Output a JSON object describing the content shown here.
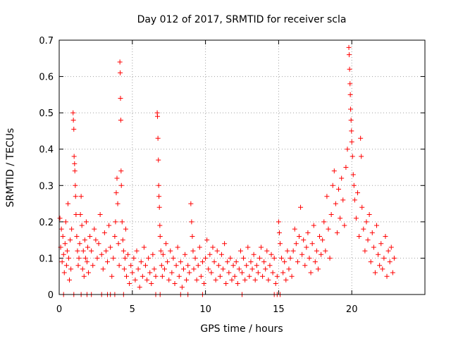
{
  "chart_data": {
    "type": "scatter",
    "title": "Day 012 of 2017, SRMTID for receiver scla",
    "xlabel": "GPS time / hours",
    "ylabel": "SRMTID / TECUs",
    "xlim": [
      0,
      25
    ],
    "ylim": [
      0,
      0.7
    ],
    "xticks": [
      0,
      5,
      10,
      15,
      20
    ],
    "yticks": [
      0,
      0.1,
      0.2,
      0.3,
      0.4,
      0.5,
      0.6,
      0.7
    ],
    "grid": true,
    "marker": "+",
    "series": [
      {
        "name": "SRMTID",
        "color": "#ff0000",
        "points": [
          [
            0.05,
            0.21
          ],
          [
            0.1,
            0.13
          ],
          [
            0.15,
            0.18
          ],
          [
            0.2,
            0.09
          ],
          [
            0.25,
            0.16
          ],
          [
            0.3,
            0.11
          ],
          [
            0.35,
            0.06
          ],
          [
            0.4,
            0.14
          ],
          [
            0.45,
            0.2
          ],
          [
            0.5,
            0.08
          ],
          [
            0.55,
            0.12
          ],
          [
            0.6,
            0.25
          ],
          [
            0.65,
            0.1
          ],
          [
            0.7,
            0.04
          ],
          [
            0.75,
            0.15
          ],
          [
            0.8,
            0.07
          ],
          [
            0.85,
            0.18
          ],
          [
            0.95,
            0.5
          ],
          [
            0.97,
            0.48
          ],
          [
            1.0,
            0.455
          ],
          [
            1.02,
            0.38
          ],
          [
            1.05,
            0.36
          ],
          [
            1.07,
            0.34
          ],
          [
            1.1,
            0.3
          ],
          [
            1.12,
            0.27
          ],
          [
            1.15,
            0.22
          ],
          [
            1.2,
            0.16
          ],
          [
            1.25,
            0.12
          ],
          [
            1.3,
            0.08
          ],
          [
            1.35,
            0.1
          ],
          [
            1.4,
            0.14
          ],
          [
            1.45,
            0.22
          ],
          [
            1.5,
            0.27
          ],
          [
            1.55,
            0.19
          ],
          [
            1.6,
            0.07
          ],
          [
            1.65,
            0.12
          ],
          [
            1.7,
            0.05
          ],
          [
            1.75,
            0.15
          ],
          [
            1.8,
            0.1
          ],
          [
            1.85,
            0.2
          ],
          [
            1.9,
            0.09
          ],
          [
            1.95,
            0.13
          ],
          [
            2.0,
            0.06
          ],
          [
            2.1,
            0.16
          ],
          [
            2.2,
            0.12
          ],
          [
            2.3,
            0.08
          ],
          [
            2.4,
            0.18
          ],
          [
            2.5,
            0.15
          ],
          [
            2.6,
            0.1
          ],
          [
            2.7,
            0.14
          ],
          [
            2.8,
            0.22
          ],
          [
            2.9,
            0.11
          ],
          [
            3.0,
            0.07
          ],
          [
            3.1,
            0.17
          ],
          [
            3.2,
            0.12
          ],
          [
            3.3,
            0.09
          ],
          [
            3.4,
            0.19
          ],
          [
            3.5,
            0.13
          ],
          [
            3.6,
            0.05
          ],
          [
            3.7,
            0.1
          ],
          [
            3.8,
            0.16
          ],
          [
            3.85,
            0.2
          ],
          [
            3.9,
            0.28
          ],
          [
            3.95,
            0.32
          ],
          [
            4.0,
            0.25
          ],
          [
            4.05,
            0.14
          ],
          [
            4.1,
            0.08
          ],
          [
            4.15,
            0.64
          ],
          [
            4.17,
            0.61
          ],
          [
            4.19,
            0.54
          ],
          [
            4.21,
            0.48
          ],
          [
            4.23,
            0.34
          ],
          [
            4.25,
            0.3
          ],
          [
            4.3,
            0.2
          ],
          [
            4.35,
            0.15
          ],
          [
            4.4,
            0.12
          ],
          [
            4.45,
            0.07
          ],
          [
            4.5,
            0.1
          ],
          [
            4.55,
            0.18
          ],
          [
            4.6,
            0.05
          ],
          [
            4.7,
            0.11
          ],
          [
            4.8,
            0.03
          ],
          [
            4.9,
            0.08
          ],
          [
            5.0,
            0.06
          ],
          [
            5.1,
            0.1
          ],
          [
            5.2,
            0.04
          ],
          [
            5.3,
            0.12
          ],
          [
            5.4,
            0.07
          ],
          [
            5.5,
            0.02
          ],
          [
            5.6,
            0.09
          ],
          [
            5.7,
            0.05
          ],
          [
            5.8,
            0.13
          ],
          [
            5.9,
            0.08
          ],
          [
            6.0,
            0.04
          ],
          [
            6.1,
            0.1
          ],
          [
            6.2,
            0.06
          ],
          [
            6.3,
            0.03
          ],
          [
            6.4,
            0.11
          ],
          [
            6.5,
            0.07
          ],
          [
            6.6,
            0.05
          ],
          [
            6.7,
            0.5
          ],
          [
            6.72,
            0.49
          ],
          [
            6.75,
            0.43
          ],
          [
            6.78,
            0.37
          ],
          [
            6.8,
            0.3
          ],
          [
            6.82,
            0.27
          ],
          [
            6.85,
            0.24
          ],
          [
            6.88,
            0.19
          ],
          [
            6.9,
            0.16
          ],
          [
            6.95,
            0.12
          ],
          [
            7.0,
            0.08
          ],
          [
            7.05,
            0.05
          ],
          [
            7.1,
            0.11
          ],
          [
            7.2,
            0.07
          ],
          [
            7.3,
            0.14
          ],
          [
            7.4,
            0.09
          ],
          [
            7.5,
            0.04
          ],
          [
            7.6,
            0.12
          ],
          [
            7.7,
            0.06
          ],
          [
            7.8,
            0.1
          ],
          [
            7.9,
            0.03
          ],
          [
            8.0,
            0.08
          ],
          [
            8.1,
            0.13
          ],
          [
            8.2,
            0.05
          ],
          [
            8.3,
            0.09
          ],
          [
            8.4,
            0.02
          ],
          [
            8.5,
            0.07
          ],
          [
            8.6,
            0.11
          ],
          [
            8.7,
            0.04
          ],
          [
            8.8,
            0.08
          ],
          [
            8.9,
            0.06
          ],
          [
            9.0,
            0.25
          ],
          [
            9.05,
            0.2
          ],
          [
            9.1,
            0.16
          ],
          [
            9.15,
            0.12
          ],
          [
            9.2,
            0.07
          ],
          [
            9.3,
            0.1
          ],
          [
            9.4,
            0.04
          ],
          [
            9.5,
            0.08
          ],
          [
            9.6,
            0.13
          ],
          [
            9.7,
            0.05
          ],
          [
            9.8,
            0.09
          ],
          [
            9.9,
            0.03
          ],
          [
            10.0,
            0.1
          ],
          [
            10.1,
            0.15
          ],
          [
            10.2,
            0.07
          ],
          [
            10.3,
            0.11
          ],
          [
            10.4,
            0.06
          ],
          [
            10.5,
            0.13
          ],
          [
            10.6,
            0.09
          ],
          [
            10.7,
            0.04
          ],
          [
            10.8,
            0.12
          ],
          [
            10.9,
            0.08
          ],
          [
            11.0,
            0.05
          ],
          [
            11.1,
            0.11
          ],
          [
            11.2,
            0.07
          ],
          [
            11.3,
            0.14
          ],
          [
            11.4,
            0.03
          ],
          [
            11.5,
            0.09
          ],
          [
            11.6,
            0.06
          ],
          [
            11.7,
            0.1
          ],
          [
            11.8,
            0.04
          ],
          [
            11.9,
            0.08
          ],
          [
            12.0,
            0.05
          ],
          [
            12.1,
            0.09
          ],
          [
            12.2,
            0.03
          ],
          [
            12.3,
            0.07
          ],
          [
            12.4,
            0.12
          ],
          [
            12.5,
            0.06
          ],
          [
            12.6,
            0.1
          ],
          [
            12.7,
            0.04
          ],
          [
            12.8,
            0.08
          ],
          [
            12.9,
            0.13
          ],
          [
            13.0,
            0.05
          ],
          [
            13.1,
            0.09
          ],
          [
            13.2,
            0.07
          ],
          [
            13.3,
            0.11
          ],
          [
            13.4,
            0.04
          ],
          [
            13.5,
            0.08
          ],
          [
            13.6,
            0.06
          ],
          [
            13.7,
            0.1
          ],
          [
            13.8,
            0.13
          ],
          [
            13.9,
            0.05
          ],
          [
            14.0,
            0.09
          ],
          [
            14.1,
            0.07
          ],
          [
            14.2,
            0.12
          ],
          [
            14.3,
            0.04
          ],
          [
            14.4,
            0.08
          ],
          [
            14.5,
            0.11
          ],
          [
            14.6,
            0.06
          ],
          [
            14.7,
            0.1
          ],
          [
            14.8,
            0.03
          ],
          [
            14.9,
            0.05
          ],
          [
            15.0,
            0.2
          ],
          [
            15.05,
            0.17
          ],
          [
            15.1,
            0.14
          ],
          [
            15.2,
            0.1
          ],
          [
            15.3,
            0.06
          ],
          [
            15.4,
            0.09
          ],
          [
            15.5,
            0.04
          ],
          [
            15.6,
            0.12
          ],
          [
            15.7,
            0.07
          ],
          [
            15.8,
            0.1
          ],
          [
            15.9,
            0.05
          ],
          [
            16.0,
            0.12
          ],
          [
            16.1,
            0.18
          ],
          [
            16.2,
            0.14
          ],
          [
            16.3,
            0.09
          ],
          [
            16.4,
            0.16
          ],
          [
            16.5,
            0.24
          ],
          [
            16.6,
            0.11
          ],
          [
            16.7,
            0.15
          ],
          [
            16.8,
            0.08
          ],
          [
            16.9,
            0.13
          ],
          [
            17.0,
            0.17
          ],
          [
            17.1,
            0.1
          ],
          [
            17.2,
            0.06
          ],
          [
            17.3,
            0.14
          ],
          [
            17.4,
            0.19
          ],
          [
            17.5,
            0.09
          ],
          [
            17.6,
            0.12
          ],
          [
            17.7,
            0.07
          ],
          [
            17.8,
            0.16
          ],
          [
            17.9,
            0.11
          ],
          [
            18.0,
            0.15
          ],
          [
            18.1,
            0.2
          ],
          [
            18.2,
            0.12
          ],
          [
            18.3,
            0.27
          ],
          [
            18.4,
            0.18
          ],
          [
            18.5,
            0.1
          ],
          [
            18.6,
            0.22
          ],
          [
            18.7,
            0.3
          ],
          [
            18.8,
            0.34
          ],
          [
            18.9,
            0.25
          ],
          [
            19.0,
            0.17
          ],
          [
            19.1,
            0.29
          ],
          [
            19.2,
            0.21
          ],
          [
            19.3,
            0.32
          ],
          [
            19.4,
            0.26
          ],
          [
            19.5,
            0.19
          ],
          [
            19.6,
            0.35
          ],
          [
            19.7,
            0.4
          ],
          [
            19.8,
            0.68
          ],
          [
            19.82,
            0.66
          ],
          [
            19.85,
            0.62
          ],
          [
            19.88,
            0.58
          ],
          [
            19.9,
            0.55
          ],
          [
            19.92,
            0.51
          ],
          [
            19.95,
            0.48
          ],
          [
            19.98,
            0.45
          ],
          [
            20.0,
            0.42
          ],
          [
            20.05,
            0.38
          ],
          [
            20.1,
            0.33
          ],
          [
            20.15,
            0.3
          ],
          [
            20.2,
            0.26
          ],
          [
            20.3,
            0.21
          ],
          [
            20.4,
            0.28
          ],
          [
            20.5,
            0.16
          ],
          [
            20.6,
            0.43
          ],
          [
            20.65,
            0.38
          ],
          [
            20.7,
            0.24
          ],
          [
            20.8,
            0.18
          ],
          [
            20.9,
            0.12
          ],
          [
            21.0,
            0.2
          ],
          [
            21.1,
            0.15
          ],
          [
            21.2,
            0.22
          ],
          [
            21.3,
            0.09
          ],
          [
            21.4,
            0.17
          ],
          [
            21.5,
            0.13
          ],
          [
            21.6,
            0.06
          ],
          [
            21.7,
            0.19
          ],
          [
            21.8,
            0.11
          ],
          [
            21.9,
            0.08
          ],
          [
            22.0,
            0.14
          ],
          [
            22.1,
            0.07
          ],
          [
            22.2,
            0.1
          ],
          [
            22.3,
            0.16
          ],
          [
            22.4,
            0.05
          ],
          [
            22.5,
            0.12
          ],
          [
            22.6,
            0.09
          ],
          [
            22.7,
            0.13
          ],
          [
            22.8,
            0.06
          ],
          [
            22.9,
            0.1
          ],
          [
            0.3,
            0
          ],
          [
            1.0,
            0
          ],
          [
            1.5,
            0
          ],
          [
            1.9,
            0
          ],
          [
            2.2,
            0
          ],
          [
            2.9,
            0
          ],
          [
            3.3,
            0
          ],
          [
            3.5,
            0
          ],
          [
            3.8,
            0
          ],
          [
            4.4,
            0
          ],
          [
            6.6,
            0
          ],
          [
            6.9,
            0
          ],
          [
            8.3,
            0
          ],
          [
            8.8,
            0
          ],
          [
            9.8,
            0
          ],
          [
            12.5,
            0
          ],
          [
            14.7,
            0
          ],
          [
            14.9,
            0
          ],
          [
            15.1,
            0
          ]
        ]
      }
    ]
  }
}
